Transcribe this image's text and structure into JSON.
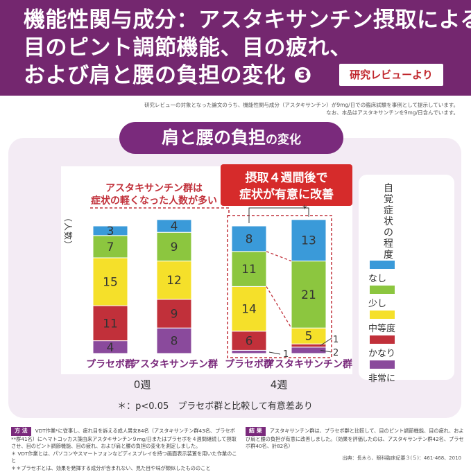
{
  "header": {
    "title_lines": [
      "機能性関与成分：アスタキサンチン摂取による",
      "目のピント調節機能、目の疲れ、",
      "および肩と腰の負担の変化 ❸"
    ],
    "badge": "研究レビューより"
  },
  "notes": [
    "研究レビューの対象となった論文のうち、機能性関与成分（アスタキサンチン）が9mg/日での臨床試験を事例として提示しています。",
    "なお、本品はアスタキサンチンを9mg/日含んでいます。"
  ],
  "subhead": {
    "main": "肩と腰の負担",
    "suffix": "の変化"
  },
  "chart_data": {
    "type": "stacked-bar",
    "y_axis_label": "（人数）",
    "groups": [
      {
        "label": "0週",
        "bars": [
          {
            "name": "プラセボ群",
            "values": [
              4,
              11,
              15,
              7,
              3
            ]
          },
          {
            "name": "アスタキサンチン群",
            "values": [
              8,
              9,
              12,
              9,
              4
            ]
          }
        ]
      },
      {
        "label": "4週",
        "bars": [
          {
            "name": "プラセボ群",
            "values": [
              1,
              6,
              14,
              11,
              8
            ]
          },
          {
            "name": "アスタキサンチン群",
            "values": [
              2,
              1,
              5,
              21,
              13
            ]
          }
        ]
      }
    ],
    "categories_bottom_to_top": [
      "非常に",
      "かなり",
      "中等度",
      "少し",
      "なし"
    ],
    "colors": {
      "非常に": "#8a4a9c",
      "かなり": "#c1303a",
      "中等度": "#f5e02a",
      "少し": "#8cc63f",
      "なし": "#3a9ad9"
    },
    "legend_title": "自覚症状の程度",
    "legend_position": "right",
    "annotation_left": [
      "アスタキサンチン群は",
      "症状の軽くなった人数が多い"
    ],
    "annotation_right": [
      "摂取４週間後で",
      "症状が有意に改善"
    ],
    "significance_mark": "*",
    "footnote": "＊：p<0.05　プラセボ群と比較して有意差あり"
  },
  "method": {
    "tag": "方 法",
    "text": "VDT作業*に従事し、疲れ目を訴える成人男女84名（アスタキサンチン群43名、プラセボ**群41名）にヘマトコッカス藻由来アスタキサンチン９mg/日またはプラセボを４週間継続して摂取させ、目のピント調節機能、目の疲れ、および肩と腰の負担の変化を測定しました。",
    "footnotes": [
      "＊ VDT作業とは、パソコンやスマートフォンなどディスプレイを持つ画面表示装置を用いた作業のこと",
      "＊＊プラセボとは、効果を発揮する成分が含まれない、見た目や味が類似したもののこと"
    ]
  },
  "result": {
    "tag": "結 果",
    "text": "アスタキサンチン群は、プラセボ群と比較して、目のピント調節機能、目の疲れ、および肩と腰の負担が有意に改善しました。（効果を評価したのは、アスタキサンチン群42名、プラセボ群40名、計82名）"
  },
  "source": "出典：長木ら、眼科臨床紀要３(５)：461-468、2010"
}
